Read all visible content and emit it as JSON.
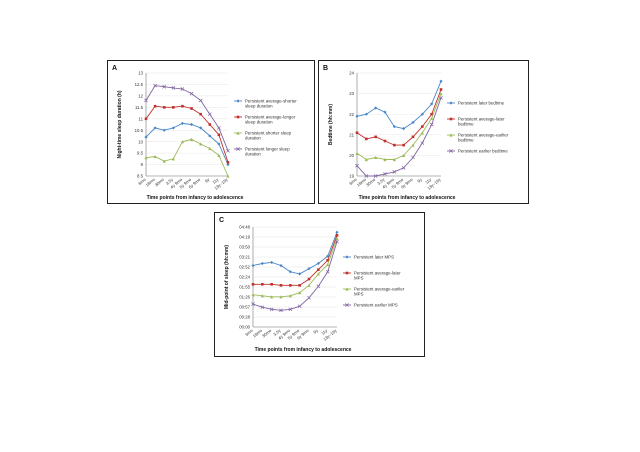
{
  "chart_data": [
    {
      "panel_letter": "A",
      "type": "line",
      "ylabel": "Night-time sleep duration (h)",
      "xlabel": "Time points from infancy to adolescence",
      "y_ticks": [
        "8.5",
        "9",
        "9.5",
        "10",
        "10.5",
        "11",
        "11.5",
        "12",
        "12.5",
        "13"
      ],
      "ylim": [
        8.5,
        13
      ],
      "categories": [
        "6mo",
        "18mo",
        "30mo",
        "3.5y",
        "4y 9mo",
        "5y 9mo",
        "6y 9mo",
        "9y",
        "11y",
        "13y–16y"
      ],
      "series": [
        {
          "name": "Persistent average-shorter sleep duration",
          "color": "#4a86c6",
          "marker": "diamond",
          "values": [
            10.2,
            10.6,
            10.5,
            10.6,
            10.8,
            10.75,
            10.6,
            10.25,
            9.9,
            9.0
          ]
        },
        {
          "name": "Persistent average-longer sleep duration",
          "color": "#c0312b",
          "marker": "square",
          "values": [
            11.0,
            11.55,
            11.5,
            11.5,
            11.55,
            11.45,
            11.2,
            10.75,
            10.3,
            9.1
          ]
        },
        {
          "name": "Persistent shorter sleep duration",
          "color": "#9bbb59",
          "marker": "triangle",
          "values": [
            9.3,
            9.35,
            9.15,
            9.25,
            10.0,
            10.1,
            9.9,
            9.7,
            9.4,
            8.5
          ]
        },
        {
          "name": "Persistent longer sleep duration",
          "color": "#8064a2",
          "marker": "cross",
          "values": [
            11.8,
            12.45,
            12.4,
            12.35,
            12.3,
            12.1,
            11.8,
            11.2,
            10.6,
            9.6
          ]
        }
      ]
    },
    {
      "panel_letter": "B",
      "type": "line",
      "ylabel": "Bedtime (hh:mm)",
      "xlabel": "Time points from infancy to adolescence",
      "y_ticks": [
        "19",
        "20",
        "21",
        "22",
        "23",
        "24"
      ],
      "ylim": [
        19,
        24
      ],
      "categories": [
        "6mo",
        "18mo",
        "30mo",
        "3.5y",
        "4y 9mo",
        "5y 9mo",
        "6y 9mo",
        "9y",
        "11y",
        "13y–16y"
      ],
      "series": [
        {
          "name": "Persistent later bedtime",
          "color": "#4a86c6",
          "marker": "diamond",
          "values": [
            21.9,
            22.0,
            22.3,
            22.1,
            21.4,
            21.3,
            21.6,
            22.0,
            22.5,
            23.6
          ]
        },
        {
          "name": "Persistent average-later bedtime",
          "color": "#c0312b",
          "marker": "square",
          "values": [
            21.1,
            20.8,
            20.9,
            20.7,
            20.5,
            20.5,
            20.9,
            21.4,
            22.0,
            23.2
          ]
        },
        {
          "name": "Persistent average-earlier bedtime",
          "color": "#9bbb59",
          "marker": "triangle",
          "values": [
            20.1,
            19.8,
            19.9,
            19.8,
            19.8,
            20.0,
            20.5,
            21.1,
            21.8,
            23.0
          ]
        },
        {
          "name": "Persistent earlier bedtime",
          "color": "#8064a2",
          "marker": "cross",
          "values": [
            19.5,
            19.0,
            19.0,
            19.1,
            19.2,
            19.4,
            19.9,
            20.6,
            21.5,
            22.8
          ]
        }
      ]
    },
    {
      "panel_letter": "C",
      "type": "line",
      "ylabel": "Mid-point of sleep (hh:mm)",
      "xlabel": "Time points from infancy to adolescence",
      "y_ticks": [
        "00:00",
        "00:28",
        "00:57",
        "01:26",
        "01:55",
        "02:24",
        "02:52",
        "03:21",
        "03:50",
        "04:19",
        "04:48"
      ],
      "ylim": [
        0,
        4.8
      ],
      "categories": [
        "6mo",
        "18mo",
        "30mo",
        "3.5y",
        "4y 9mo",
        "5y 9mo",
        "6y 9mo",
        "9y",
        "11y",
        "13y–16y"
      ],
      "series": [
        {
          "name": "Persistent later MPS",
          "color": "#4a86c6",
          "marker": "diamond",
          "values": [
            2.95,
            3.05,
            3.1,
            2.95,
            2.65,
            2.55,
            2.8,
            3.05,
            3.4,
            4.55
          ]
        },
        {
          "name": "Persistent average-later MPS",
          "color": "#c0312b",
          "marker": "square",
          "values": [
            2.05,
            2.05,
            2.05,
            2.0,
            2.0,
            2.0,
            2.3,
            2.75,
            3.2,
            4.4
          ]
        },
        {
          "name": "Persistent average-earlier MPS",
          "color": "#9bbb59",
          "marker": "triangle",
          "values": [
            1.55,
            1.5,
            1.45,
            1.45,
            1.5,
            1.65,
            2.0,
            2.55,
            3.0,
            4.25
          ]
        },
        {
          "name": "Persistent earlier MPS",
          "color": "#8064a2",
          "marker": "cross",
          "values": [
            1.1,
            0.95,
            0.85,
            0.8,
            0.85,
            1.0,
            1.4,
            1.95,
            2.65,
            4.1
          ]
        }
      ]
    }
  ]
}
